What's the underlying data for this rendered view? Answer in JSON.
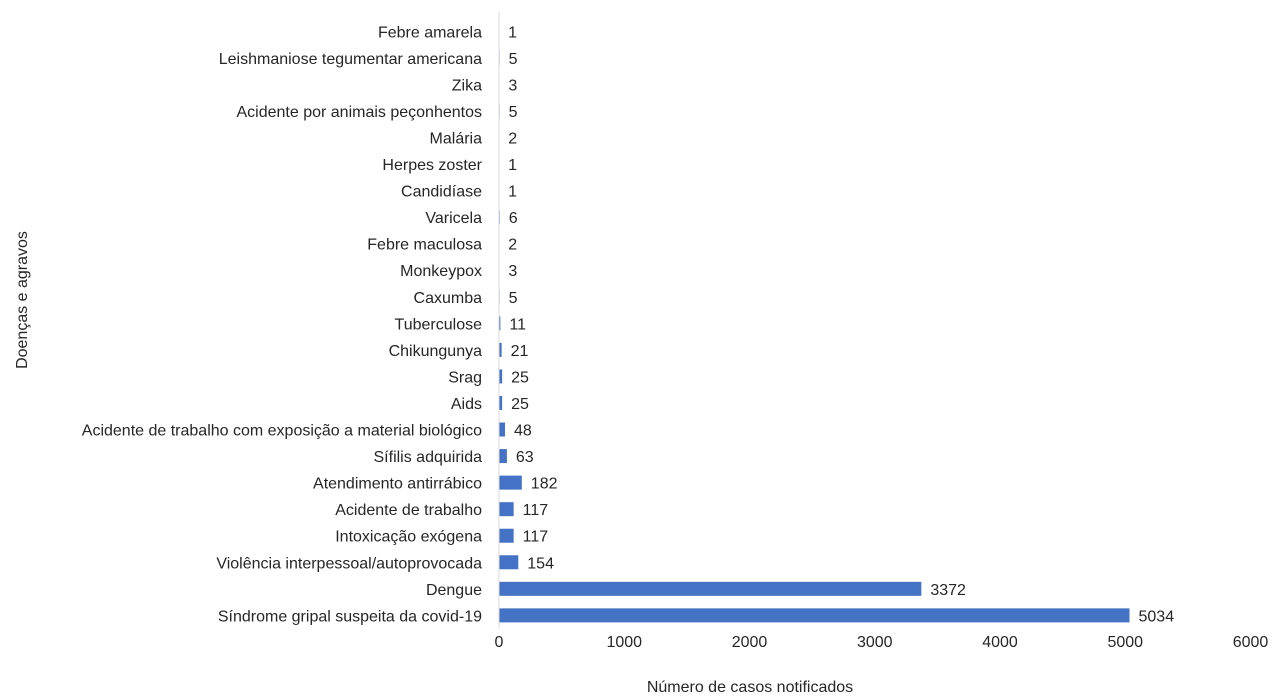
{
  "chart_data": {
    "type": "bar",
    "orientation": "horizontal",
    "categories": [
      "Síndrome gripal suspeita da covid-19",
      "Dengue",
      "Violência interpessoal/autoprovocada",
      "Intoxicação exógena",
      "Acidente de trabalho",
      "Atendimento antirrábico",
      "Sífilis adquirida",
      "Acidente de trabalho com exposição a material biológico",
      "Aids",
      "Srag",
      "Chikungunya",
      "Tuberculose",
      "Caxumba",
      "Monkeypox",
      "Febre maculosa",
      "Varicela",
      "Candidíase",
      "Herpes zoster",
      "Malária",
      "Acidente por animais peçonhentos",
      "Zika",
      "Leishmaniose tegumentar americana",
      "Febre amarela"
    ],
    "values": [
      5034,
      3372,
      154,
      117,
      117,
      182,
      63,
      48,
      25,
      25,
      21,
      11,
      5,
      3,
      2,
      6,
      1,
      1,
      2,
      5,
      3,
      5,
      1
    ],
    "title": "",
    "xlabel": "Número de casos notificados",
    "ylabel": "Doenças e agravos",
    "xlim": [
      0,
      6000
    ],
    "xticks": [
      "0",
      "1000",
      "2000",
      "3000",
      "4000",
      "5000",
      "6000"
    ],
    "grid": false,
    "data_labels": true,
    "bar_color": "#4472c4",
    "axis_color": "#d9d9d9",
    "text_color": "#262626"
  }
}
